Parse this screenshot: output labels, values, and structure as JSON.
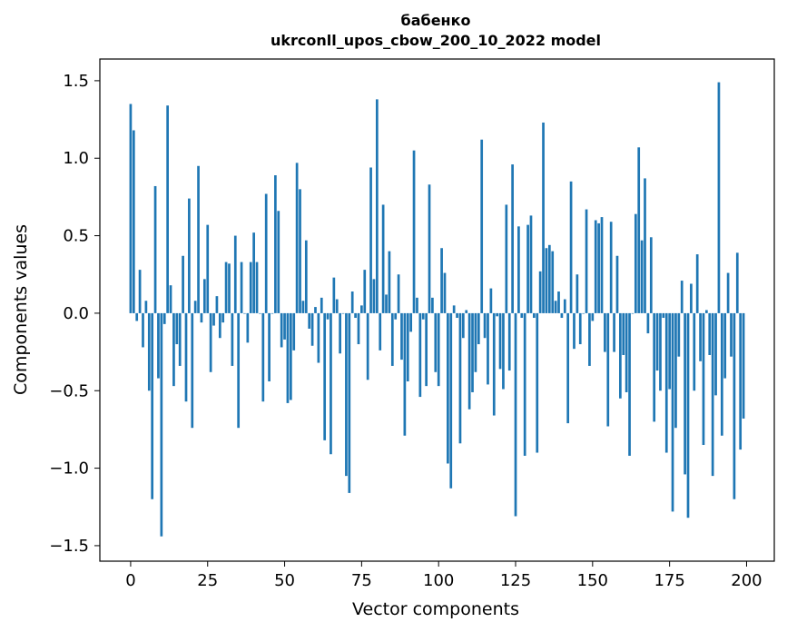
{
  "chart_data": {
    "type": "bar",
    "title": "бабенко",
    "subtitle": "ukrconll_upos_cbow_200_10_2022 model",
    "xlabel": "Vector components",
    "ylabel": "Components values",
    "xlim": [
      -10,
      209
    ],
    "ylim": [
      -1.6,
      1.64
    ],
    "xticks": [
      0,
      25,
      50,
      75,
      100,
      125,
      150,
      175,
      200
    ],
    "yticks": [
      -1.5,
      -1.0,
      -0.5,
      0.0,
      0.5,
      1.0,
      1.5
    ],
    "ytick_labels": [
      "−1.5",
      "−1.0",
      "−0.5",
      "0.0",
      "0.5",
      "1.0",
      "1.5"
    ],
    "bar_color": "#1f77b4",
    "grid": false,
    "values": [
      1.35,
      1.18,
      -0.05,
      0.28,
      -0.22,
      0.08,
      -0.5,
      -1.2,
      0.82,
      -0.42,
      -1.44,
      -0.07,
      1.34,
      0.18,
      -0.47,
      -0.2,
      -0.34,
      0.37,
      -0.57,
      0.74,
      -0.74,
      0.08,
      0.95,
      -0.06,
      0.22,
      0.57,
      -0.38,
      -0.08,
      0.11,
      -0.16,
      -0.06,
      0.33,
      0.32,
      -0.34,
      0.5,
      -0.74,
      0.33,
      0.0,
      -0.19,
      0.33,
      0.52,
      0.33,
      0.0,
      -0.57,
      0.77,
      -0.44,
      0.0,
      0.89,
      0.66,
      -0.22,
      -0.17,
      -0.58,
      -0.56,
      -0.24,
      0.97,
      0.8,
      0.08,
      0.47,
      -0.1,
      -0.21,
      0.04,
      -0.32,
      0.1,
      -0.82,
      -0.04,
      -0.91,
      0.23,
      0.09,
      -0.26,
      0.0,
      -1.05,
      -1.16,
      0.14,
      -0.03,
      -0.2,
      0.05,
      0.28,
      -0.43,
      0.94,
      0.22,
      1.38,
      -0.24,
      0.7,
      0.12,
      0.4,
      -0.34,
      -0.04,
      0.25,
      -0.3,
      -0.79,
      -0.44,
      -0.12,
      1.05,
      0.1,
      -0.54,
      -0.04,
      -0.47,
      0.83,
      0.1,
      -0.38,
      -0.47,
      0.42,
      0.26,
      -0.97,
      -1.13,
      0.05,
      -0.03,
      -0.84,
      -0.16,
      0.02,
      -0.62,
      -0.51,
      -0.38,
      -0.2,
      1.12,
      -0.16,
      -0.46,
      0.16,
      -0.66,
      -0.02,
      -0.36,
      -0.49,
      0.7,
      -0.37,
      0.96,
      -1.31,
      0.56,
      -0.03,
      -0.92,
      0.57,
      0.63,
      -0.03,
      -0.9,
      0.27,
      1.23,
      0.42,
      0.44,
      0.4,
      0.08,
      0.14,
      -0.03,
      0.09,
      -0.71,
      0.85,
      -0.23,
      0.25,
      -0.2,
      0.0,
      0.67,
      -0.34,
      -0.05,
      0.6,
      0.58,
      0.62,
      -0.25,
      -0.73,
      0.59,
      -0.25,
      0.37,
      -0.55,
      -0.27,
      -0.51,
      -0.92,
      0.0,
      0.64,
      1.07,
      0.47,
      0.87,
      -0.13,
      0.49,
      -0.7,
      -0.37,
      -0.5,
      -0.03,
      -0.9,
      -0.49,
      -1.28,
      -0.74,
      -0.28,
      0.21,
      -1.04,
      -1.32,
      0.19,
      -0.5,
      0.38,
      -0.31,
      -0.85,
      0.02,
      -0.27,
      -1.05,
      -0.53,
      1.49,
      -0.79,
      -0.42,
      0.26,
      -0.28,
      -1.2,
      0.39,
      -0.88,
      -0.68
    ]
  }
}
